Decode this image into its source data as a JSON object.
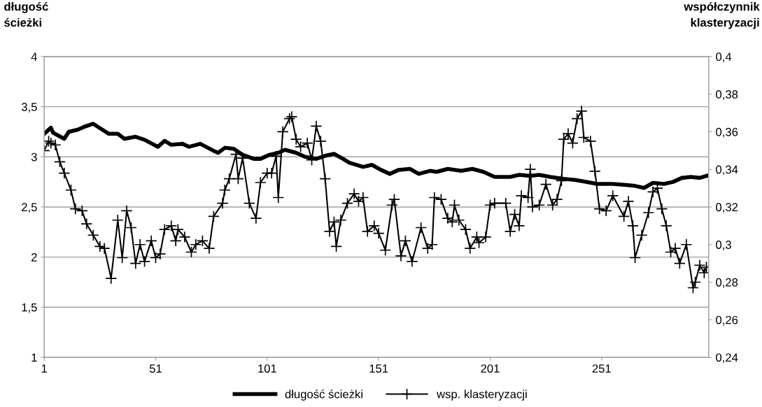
{
  "chart_data": {
    "type": "line",
    "ylabel": "długość\nścieżki",
    "y2label": "współczynnik\nklasteryzacji",
    "xlim": [
      1,
      299
    ],
    "xticks": [
      1,
      51,
      101,
      151,
      201,
      251
    ],
    "ylim": [
      1,
      4
    ],
    "yticks": [
      1,
      {
        "value": 1.5,
        "label": "1,5"
      },
      2,
      {
        "value": 2.5,
        "label": "2,5"
      },
      3,
      {
        "value": 3.5,
        "label": "3,5"
      },
      4
    ],
    "y2lim": [
      0.24,
      0.4
    ],
    "y2ticks": [
      {
        "value": 0.24,
        "label": "0,24"
      },
      {
        "value": 0.26,
        "label": "0,26"
      },
      {
        "value": 0.28,
        "label": "0,28"
      },
      {
        "value": 0.3,
        "label": "0,3"
      },
      {
        "value": 0.32,
        "label": "0,32"
      },
      {
        "value": 0.34,
        "label": "0,34"
      },
      {
        "value": 0.36,
        "label": "0,36"
      },
      {
        "value": 0.38,
        "label": "0,38"
      },
      {
        "value": 0.4,
        "label": "0,4"
      }
    ],
    "grid": "y",
    "legend": "bottom",
    "series": [
      {
        "name": "długość ścieżki",
        "color": "#000000",
        "marker": "none",
        "x": [
          1,
          4,
          5,
          10,
          12,
          16,
          19,
          23,
          25,
          30,
          34,
          37,
          42,
          46,
          52,
          55,
          58,
          63,
          66,
          71,
          77,
          79,
          82,
          86,
          90,
          95,
          98,
          102,
          106,
          109,
          114,
          118,
          123,
          127,
          131,
          135,
          138,
          144,
          148,
          152,
          156,
          160,
          165,
          169,
          174,
          177,
          182,
          188,
          193,
          198,
          203,
          210,
          214,
          219,
          223,
          228,
          234,
          239,
          244,
          249,
          256,
          262,
          266,
          270,
          274,
          279,
          283,
          287,
          291,
          295,
          298
        ],
        "values": [
          3.23,
          3.29,
          3.24,
          3.18,
          3.25,
          3.27,
          3.3,
          3.33,
          3.3,
          3.23,
          3.23,
          3.18,
          3.2,
          3.17,
          3.1,
          3.16,
          3.12,
          3.13,
          3.1,
          3.13,
          3.06,
          3.04,
          3.09,
          3.08,
          3.02,
          2.98,
          2.98,
          3.02,
          3.04,
          3.07,
          3.04,
          3.0,
          2.98,
          3.01,
          3.03,
          2.98,
          2.94,
          2.9,
          2.92,
          2.87,
          2.83,
          2.87,
          2.88,
          2.83,
          2.86,
          2.85,
          2.88,
          2.86,
          2.88,
          2.85,
          2.8,
          2.8,
          2.82,
          2.81,
          2.82,
          2.8,
          2.78,
          2.77,
          2.75,
          2.73,
          2.73,
          2.72,
          2.71,
          2.69,
          2.74,
          2.73,
          2.75,
          2.79,
          2.8,
          2.79,
          2.81
        ]
      },
      {
        "name": "wsp. klasteryzacji",
        "color": "#000000",
        "marker": "cross",
        "axis": "y2",
        "x": [
          1,
          3,
          4,
          6,
          8,
          10,
          13,
          15,
          18,
          20,
          23,
          26,
          28,
          31,
          34,
          36,
          38,
          40,
          42,
          44,
          46,
          49,
          51,
          53,
          55,
          58,
          60,
          61,
          64,
          67,
          69,
          72,
          75,
          77,
          81,
          82,
          84,
          87,
          88,
          90,
          93,
          96,
          98,
          101,
          103,
          105,
          106,
          108,
          111,
          112,
          114,
          116,
          119,
          121,
          123,
          125,
          127,
          129,
          131,
          132,
          134,
          137,
          140,
          142,
          144,
          146,
          149,
          151,
          154,
          157,
          158,
          161,
          163,
          166,
          170,
          173,
          175,
          176,
          179,
          182,
          184,
          185,
          187,
          190,
          192,
          195,
          196,
          199,
          201,
          203,
          208,
          210,
          212,
          214,
          215,
          218,
          219,
          220,
          223,
          226,
          229,
          231,
          233,
          234,
          236,
          238,
          240,
          242,
          243,
          246,
          248,
          250,
          253,
          256,
          261,
          263,
          265,
          266,
          269,
          272,
          274,
          276,
          278,
          280,
          282,
          284,
          286,
          289,
          292,
          293,
          295,
          297,
          298
        ],
        "values": [
          0.35,
          0.355,
          0.354,
          0.353,
          0.344,
          0.338,
          0.329,
          0.319,
          0.318,
          0.311,
          0.305,
          0.299,
          0.298,
          0.282,
          0.313,
          0.293,
          0.318,
          0.309,
          0.29,
          0.3,
          0.291,
          0.302,
          0.293,
          0.295,
          0.308,
          0.31,
          0.302,
          0.308,
          0.304,
          0.296,
          0.3,
          0.302,
          0.298,
          0.315,
          0.322,
          0.329,
          0.335,
          0.348,
          0.335,
          0.346,
          0.322,
          0.314,
          0.333,
          0.338,
          0.338,
          0.347,
          0.325,
          0.36,
          0.367,
          0.368,
          0.356,
          0.352,
          0.354,
          0.345,
          0.363,
          0.355,
          0.335,
          0.307,
          0.312,
          0.299,
          0.313,
          0.322,
          0.327,
          0.323,
          0.325,
          0.307,
          0.31,
          0.306,
          0.297,
          0.321,
          0.324,
          0.294,
          0.302,
          0.291,
          0.309,
          0.298,
          0.3,
          0.325,
          0.324,
          0.314,
          0.312,
          0.321,
          0.313,
          0.308,
          0.298,
          0.304,
          0.301,
          0.304,
          0.321,
          0.322,
          0.322,
          0.307,
          0.316,
          0.31,
          0.326,
          0.325,
          0.34,
          0.32,
          0.321,
          0.332,
          0.321,
          0.324,
          0.334,
          0.356,
          0.359,
          0.354,
          0.367,
          0.371,
          0.357,
          0.355,
          0.339,
          0.319,
          0.318,
          0.326,
          0.315,
          0.323,
          0.31,
          0.293,
          0.305,
          0.317,
          0.328,
          0.33,
          0.319,
          0.31,
          0.296,
          0.298,
          0.29,
          0.3,
          0.277,
          0.28,
          0.289,
          0.285,
          0.288
        ]
      }
    ]
  }
}
